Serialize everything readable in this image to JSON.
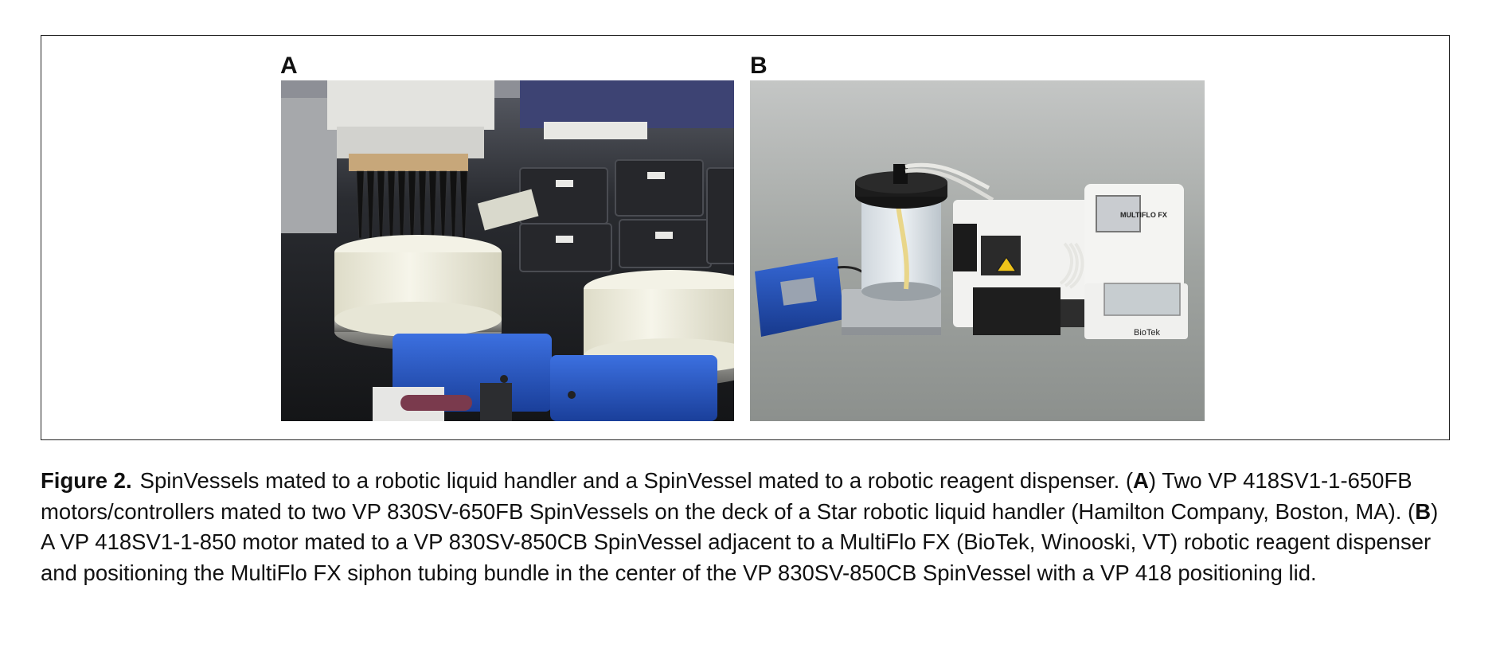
{
  "figure": {
    "panel_a_label": "A",
    "panel_b_label": "B",
    "panel_b_brand_text": "MULTIFLO FX",
    "panel_b_logo_text": "BioTek",
    "caption": {
      "label": "Figure 2.",
      "part1": "SpinVessels mated to a robotic liquid handler and a SpinVessel mated to a robotic reagent dispenser. (",
      "ref_a": "A",
      "part2": ") Two VP 418SV1-1-650FB motors/controllers mated to two VP 830SV-650FB SpinVessels on the deck of a Star robotic liquid handler (Hamilton Company, Boston, MA). (",
      "ref_b": "B",
      "part3": ") A VP 418SV1-1-850 motor mated to a VP 830SV-850CB SpinVessel adjacent to a MultiFlo FX (BioTek, Winooski, VT) robotic reagent dispenser and positioning the MultiFlo FX siphon tubing bundle in the center of the VP 830SV-850CB SpinVessel with a VP 418 positioning lid."
    }
  },
  "colors": {
    "frame": "#222222",
    "deck_dark": "#1e1f22",
    "motor_blue": "#1f4fb5",
    "vessel_cream": "#efeedd",
    "backdrop_gray": "#a9acaa",
    "dispenser_white": "#f2f2f0"
  }
}
